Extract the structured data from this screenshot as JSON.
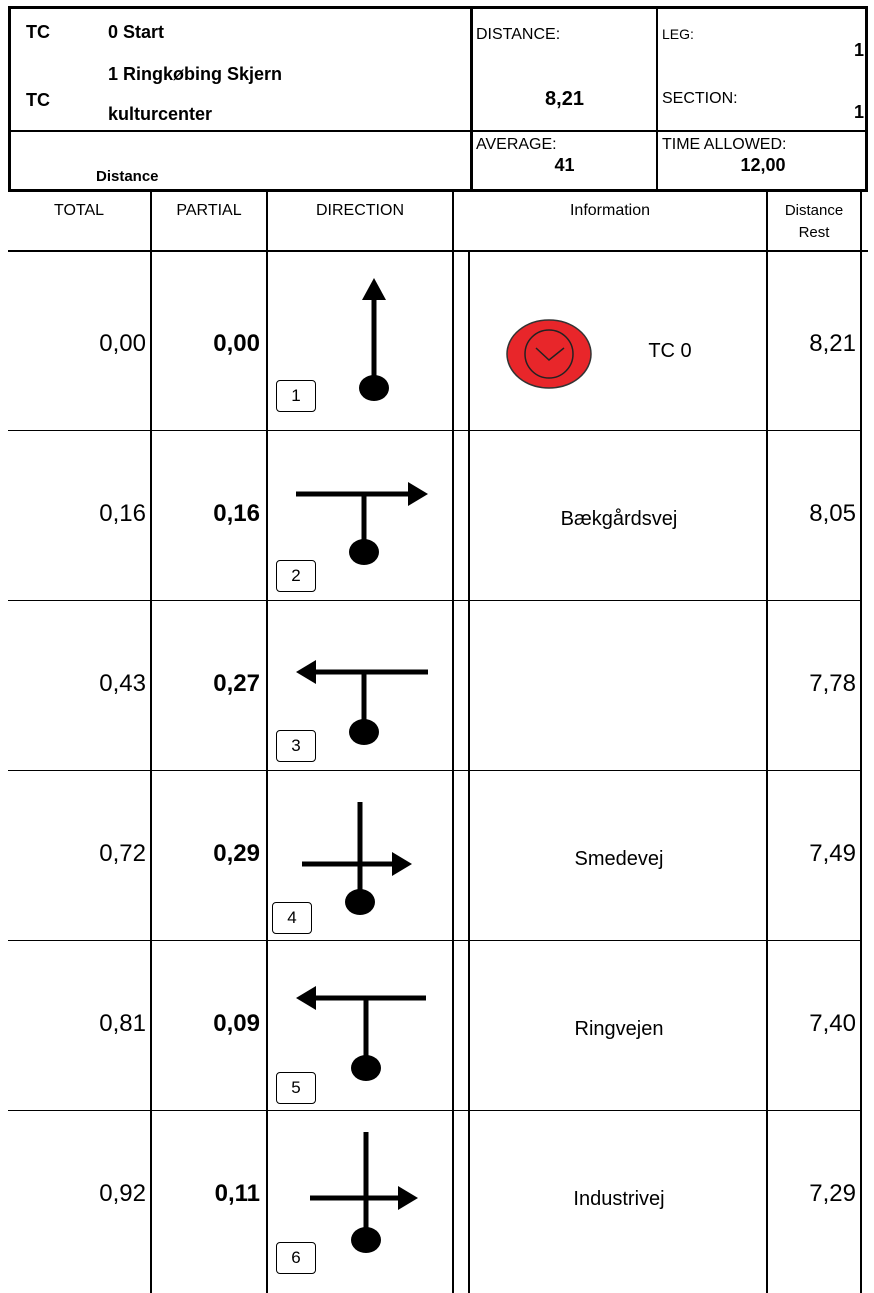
{
  "header": {
    "tc_label_1": "TC",
    "tc_start": "0 Start",
    "tc_label_2": "TC",
    "tc_dest_line1": "1 Ringkøbing Skjern",
    "tc_dest_line2": "kulturcenter",
    "distance_label": "DISTANCE:",
    "distance_value": "8,21",
    "leg_label": "LEG:",
    "leg_value": "1",
    "section_label": "SECTION:",
    "section_value": "1",
    "distance_heading": "Distance",
    "average_label": "AVERAGE:",
    "average_value": "41",
    "time_allowed_label": "TIME ALLOWED:",
    "time_allowed_value": "12,00"
  },
  "columns": {
    "total": "TOTAL",
    "partial": "PARTIAL",
    "direction": "DIRECTION",
    "information": "Information",
    "rest_line1": "Distance",
    "rest_line2": "Rest"
  },
  "rows": [
    {
      "n": "1",
      "total": "0,00",
      "partial": "0,00",
      "info": "TC 0",
      "rest": "8,21",
      "diagram": "straight-up"
    },
    {
      "n": "2",
      "total": "0,16",
      "partial": "0,16",
      "info": "Bækgårdsvej",
      "rest": "8,05",
      "diagram": "t-right"
    },
    {
      "n": "3",
      "total": "0,43",
      "partial": "0,27",
      "info": "",
      "rest": "7,78",
      "diagram": "t-left"
    },
    {
      "n": "4",
      "total": "0,72",
      "partial": "0,29",
      "info": "Smedevej",
      "rest": "7,49",
      "diagram": "cross-right"
    },
    {
      "n": "5",
      "total": "0,81",
      "partial": "0,09",
      "info": "Ringvejen",
      "rest": "7,40",
      "diagram": "t-left"
    },
    {
      "n": "6",
      "total": "0,92",
      "partial": "0,11",
      "info": "Industrivej",
      "rest": "7,29",
      "diagram": "cross-right"
    }
  ],
  "colors": {
    "tc_icon": "#e8262a"
  },
  "icons": {
    "tc": "clock-icon"
  }
}
